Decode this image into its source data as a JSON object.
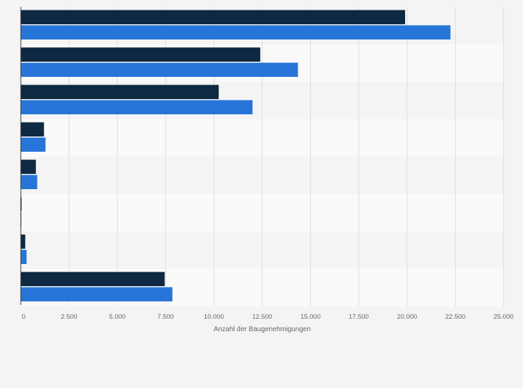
{
  "chart_data": {
    "type": "bar",
    "orientation": "horizontal",
    "title": "",
    "xlabel": "Anzahl der Baugenehmigungen",
    "ylabel": "",
    "categories": [
      "",
      "",
      "",
      "",
      "",
      "",
      "",
      ""
    ],
    "series": [
      {
        "name": "",
        "color": "#0f2942",
        "values": [
          19900,
          12400,
          10250,
          1200,
          780,
          40,
          230,
          7450
        ]
      },
      {
        "name": "",
        "color": "#2775d8",
        "values": [
          22250,
          14350,
          12000,
          1280,
          850,
          20,
          300,
          7850
        ]
      }
    ],
    "xlim": [
      0,
      25000
    ],
    "xticks": [
      0,
      2500,
      5000,
      7500,
      10000,
      12500,
      15000,
      17500,
      20000,
      22500,
      25000
    ],
    "xtick_labels": [
      "0",
      "2.500",
      "5.000",
      "7.500",
      "10.000",
      "12.500",
      "15.000",
      "17.500",
      "20.000",
      "22.500",
      "25.000"
    ],
    "grid": true,
    "legend": "none"
  }
}
